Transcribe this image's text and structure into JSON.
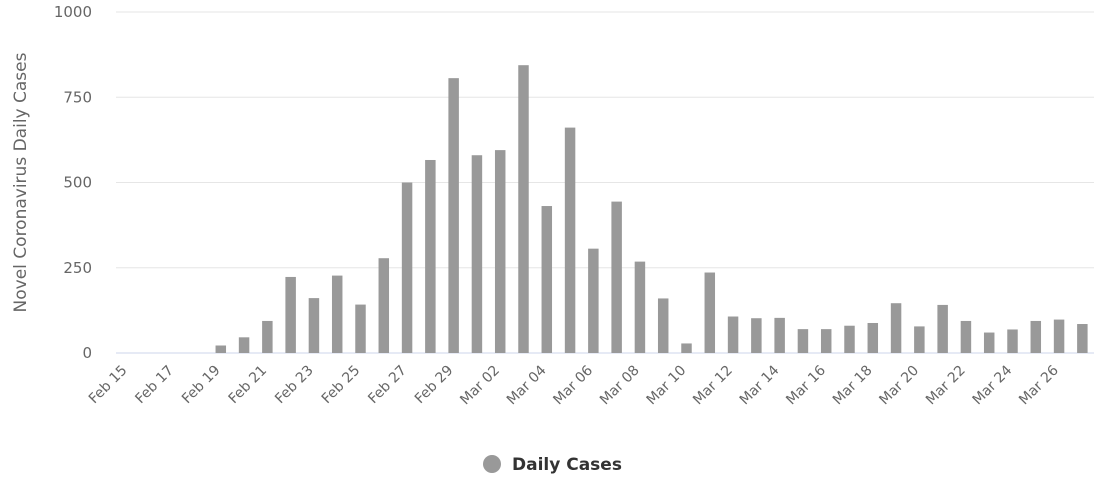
{
  "chart_data": {
    "type": "bar",
    "xlabel": "",
    "ylabel": "Novel Coronavirus Daily Cases",
    "ylim": [
      0,
      1000
    ],
    "yticks": [
      "0",
      "250",
      "500",
      "750",
      "1000"
    ],
    "categories": [
      "Feb 15",
      "Feb 16",
      "Feb 17",
      "Feb 18",
      "Feb 19",
      "Feb 20",
      "Feb 21",
      "Feb 22",
      "Feb 23",
      "Feb 24",
      "Feb 25",
      "Feb 26",
      "Feb 27",
      "Feb 28",
      "Feb 29",
      "Mar 01",
      "Mar 02",
      "Mar 03",
      "Mar 04",
      "Mar 05",
      "Mar 06",
      "Mar 07",
      "Mar 08",
      "Mar 09",
      "Mar 10",
      "Mar 11",
      "Mar 12",
      "Mar 13",
      "Mar 14",
      "Mar 15",
      "Mar 16",
      "Mar 17",
      "Mar 18",
      "Mar 19",
      "Mar 20",
      "Mar 21",
      "Mar 22",
      "Mar 23",
      "Mar 24",
      "Mar 25",
      "Mar 26",
      "Mar 27"
    ],
    "xtick_labels": [
      "Feb 15",
      "Feb 17",
      "Feb 19",
      "Feb 21",
      "Feb 23",
      "Feb 25",
      "Feb 27",
      "Feb 29",
      "Mar 02",
      "Mar 04",
      "Mar 06",
      "Mar 08",
      "Mar 10",
      "Mar 12",
      "Mar 14",
      "Mar 16",
      "Mar 18",
      "Mar 20",
      "Mar 22",
      "Mar 24",
      "Mar 26"
    ],
    "series": [
      {
        "name": "Daily Cases",
        "color": "#999999",
        "values": [
          0,
          0,
          0,
          0,
          22,
          46,
          94,
          223,
          161,
          227,
          142,
          278,
          500,
          566,
          806,
          580,
          595,
          844,
          431,
          661,
          306,
          444,
          268,
          160,
          28,
          236,
          107,
          102,
          103,
          70,
          70,
          80,
          88,
          146,
          78,
          141,
          94,
          60,
          69,
          94,
          98,
          85
        ]
      }
    ],
    "grid": true,
    "legend_position": "bottom-center"
  }
}
